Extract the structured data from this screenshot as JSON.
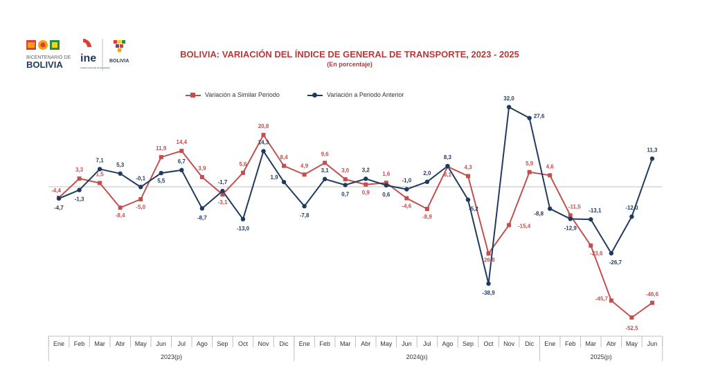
{
  "header": {
    "logo_left_text_1": "BICENTENARIO DE",
    "logo_left_text_2": "BOLIVIA",
    "logo_ine_text": "ine",
    "logo_ine_sub": "Instituto Nacional de Estadística",
    "logo_right_text": "BOLIVIA",
    "title": "BOLIVIA: VARIACIÓN DEL ÍNDICE DE GENERAL DE TRANSPORTE,  2023 - 2025",
    "subtitle": "(En porcentaje)"
  },
  "colors": {
    "similar": "#c0504d",
    "anterior": "#1f3a5f",
    "title": "#b23a3a"
  },
  "chart_data": {
    "type": "line",
    "title": "BOLIVIA: VARIACIÓN DEL ÍNDICE DE GENERAL DE TRANSPORTE,  2023 - 2025",
    "subtitle": "(En porcentaje)",
    "xlabel": "",
    "ylabel": "",
    "ylim": [
      -55,
      35
    ],
    "grid": false,
    "legend_position": "top",
    "categories": [
      "Ene",
      "Feb",
      "Mar",
      "Abr",
      "May",
      "Jun",
      "Jul",
      "Ago",
      "Sep",
      "Oct",
      "Nov",
      "Dic",
      "Ene",
      "Feb",
      "Mar",
      "Abr",
      "May",
      "Jun",
      "Jul",
      "Ago",
      "Sep",
      "Oct",
      "Nov",
      "Dic",
      "Ene",
      "Feb",
      "Mar",
      "Abr",
      "May",
      "Jun"
    ],
    "year_groups": [
      {
        "label": "2023(p)",
        "count": 12
      },
      {
        "label": "2024(p)",
        "count": 12
      },
      {
        "label": "2025(p)",
        "count": 6
      }
    ],
    "series": [
      {
        "name": "Variación a Similar Periodo",
        "marker": "square",
        "values": [
          -4.4,
          3.3,
          1.5,
          -8.4,
          -5.0,
          11.9,
          14.4,
          3.9,
          -3.1,
          5.6,
          20.8,
          8.4,
          4.9,
          9.6,
          3.0,
          0.9,
          1.6,
          -4.6,
          -8.9,
          8.1,
          4.3,
          -26.8,
          -15.4,
          5.9,
          4.6,
          -11.5,
          -23.6,
          -45.7,
          -52.5,
          -46.6
        ],
        "labels": [
          "-4,4",
          "3,3",
          "1,5",
          "-8,4",
          "-5,0",
          "11,9",
          "14,4",
          "3,9",
          "-3,1",
          "5,6",
          "20,8",
          "8,4",
          "4,9",
          "9,6",
          "3,0",
          "0,9",
          "1,6",
          "-4,6",
          "-8,9",
          "8,1",
          "4,3",
          "-26,8",
          "-15,4",
          "5,9",
          "4,6",
          "-11,5",
          "-23,6",
          "-45,7",
          "-52,5",
          "-46,6"
        ]
      },
      {
        "name": "Variación a Periodo Anterior",
        "marker": "circle",
        "values": [
          -4.7,
          -1.3,
          7.1,
          5.3,
          -0.1,
          5.5,
          6.7,
          -8.7,
          -1.7,
          -13.0,
          14.3,
          1.9,
          -7.8,
          3.1,
          0.7,
          3.2,
          0.6,
          -1.0,
          2.0,
          8.3,
          -5.2,
          -38.9,
          32.0,
          27.6,
          -8.8,
          -12.9,
          -13.1,
          -26.7,
          -12.0,
          11.3
        ],
        "labels": [
          "-4,7",
          "-1,3",
          "7,1",
          "5,3",
          "-0,1",
          "5,5",
          "6,7",
          "-8,7",
          "-1,7",
          "-13,0",
          "14,3",
          "1,9",
          "-7,8",
          "3,1",
          "0,7",
          "3,2",
          "0,6",
          "-1,0",
          "2,0",
          "8,3",
          "-5,2",
          "-38,9",
          "32,0",
          "27,6",
          "-8,8",
          "-12,9",
          "-13,1",
          "-26,7",
          "-12,0",
          "11,3"
        ]
      }
    ]
  }
}
